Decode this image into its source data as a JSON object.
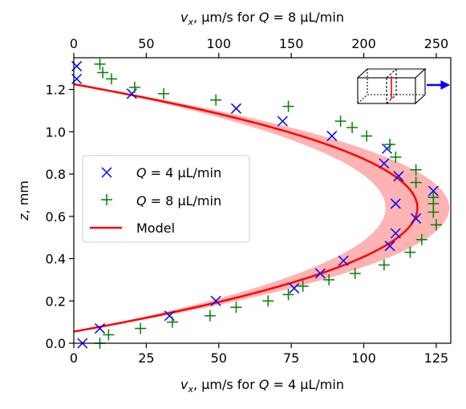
{
  "chart_data": {
    "type": "scatter",
    "xlabel_bottom": "v_x, μm/s for Q = 4 μL/min",
    "xlabel_top": "v_x, μm/s for Q = 8 μL/min",
    "ylabel": "z, mm",
    "xlim_bottom": [
      0,
      130
    ],
    "xlim_top": [
      0,
      260
    ],
    "ylim": [
      0,
      1.35
    ],
    "xticks_bottom": [
      "0",
      "25",
      "50",
      "75",
      "100",
      "125"
    ],
    "xticks_top": [
      "0",
      "50",
      "100",
      "150",
      "200",
      "250"
    ],
    "yticks": [
      "0.0",
      "0.2",
      "0.4",
      "0.6",
      "0.8",
      "1.0",
      "1.2"
    ],
    "grid": false,
    "legend_position": "center-left",
    "series": [
      {
        "name": "Q = 4 μL/min",
        "marker": "x",
        "color": "#0000ff",
        "points": [
          [
            3,
            0.0
          ],
          [
            9,
            0.07
          ],
          [
            33,
            0.13
          ],
          [
            49,
            0.2
          ],
          [
            76,
            0.26
          ],
          [
            85,
            0.33
          ],
          [
            93,
            0.39
          ],
          [
            109,
            0.46
          ],
          [
            111,
            0.52
          ],
          [
            118,
            0.59
          ],
          [
            111,
            0.66
          ],
          [
            124,
            0.72
          ],
          [
            112,
            0.79
          ],
          [
            107,
            0.85
          ],
          [
            108,
            0.92
          ],
          [
            89,
            0.98
          ],
          [
            72,
            1.05
          ],
          [
            56,
            1.11
          ],
          [
            20,
            1.18
          ],
          [
            1,
            1.25
          ],
          [
            1,
            1.31
          ]
        ]
      },
      {
        "name": "Q = 8 μL/min",
        "marker": "+",
        "color": "#008000",
        "points": [
          [
            9,
            0.0
          ],
          [
            12,
            0.04
          ],
          [
            23,
            0.07
          ],
          [
            34,
            0.1
          ],
          [
            47,
            0.13
          ],
          [
            56,
            0.17
          ],
          [
            67,
            0.2
          ],
          [
            74,
            0.23
          ],
          [
            79,
            0.27
          ],
          [
            88,
            0.3
          ],
          [
            97,
            0.33
          ],
          [
            107,
            0.37
          ],
          [
            116,
            0.43
          ],
          [
            120,
            0.49
          ],
          [
            125,
            0.56
          ],
          [
            124,
            0.62
          ],
          [
            124,
            0.66
          ],
          [
            124,
            0.69
          ],
          [
            118,
            0.76
          ],
          [
            118,
            0.82
          ],
          [
            111,
            0.88
          ],
          [
            109,
            0.94
          ],
          [
            101,
            0.98
          ],
          [
            96,
            1.02
          ],
          [
            92,
            1.05
          ],
          [
            74,
            1.12
          ],
          [
            49,
            1.15
          ],
          [
            31,
            1.18
          ],
          [
            21,
            1.21
          ],
          [
            13,
            1.25
          ],
          [
            10,
            1.28
          ],
          [
            9,
            1.32
          ]
        ]
      }
    ],
    "model": {
      "name": "Model",
      "color": "#ff0000",
      "band_color": "#ff8080",
      "z_min": 0.055,
      "z_max": 1.225,
      "v_max": 118.5,
      "band_half_width": 11
    }
  }
}
